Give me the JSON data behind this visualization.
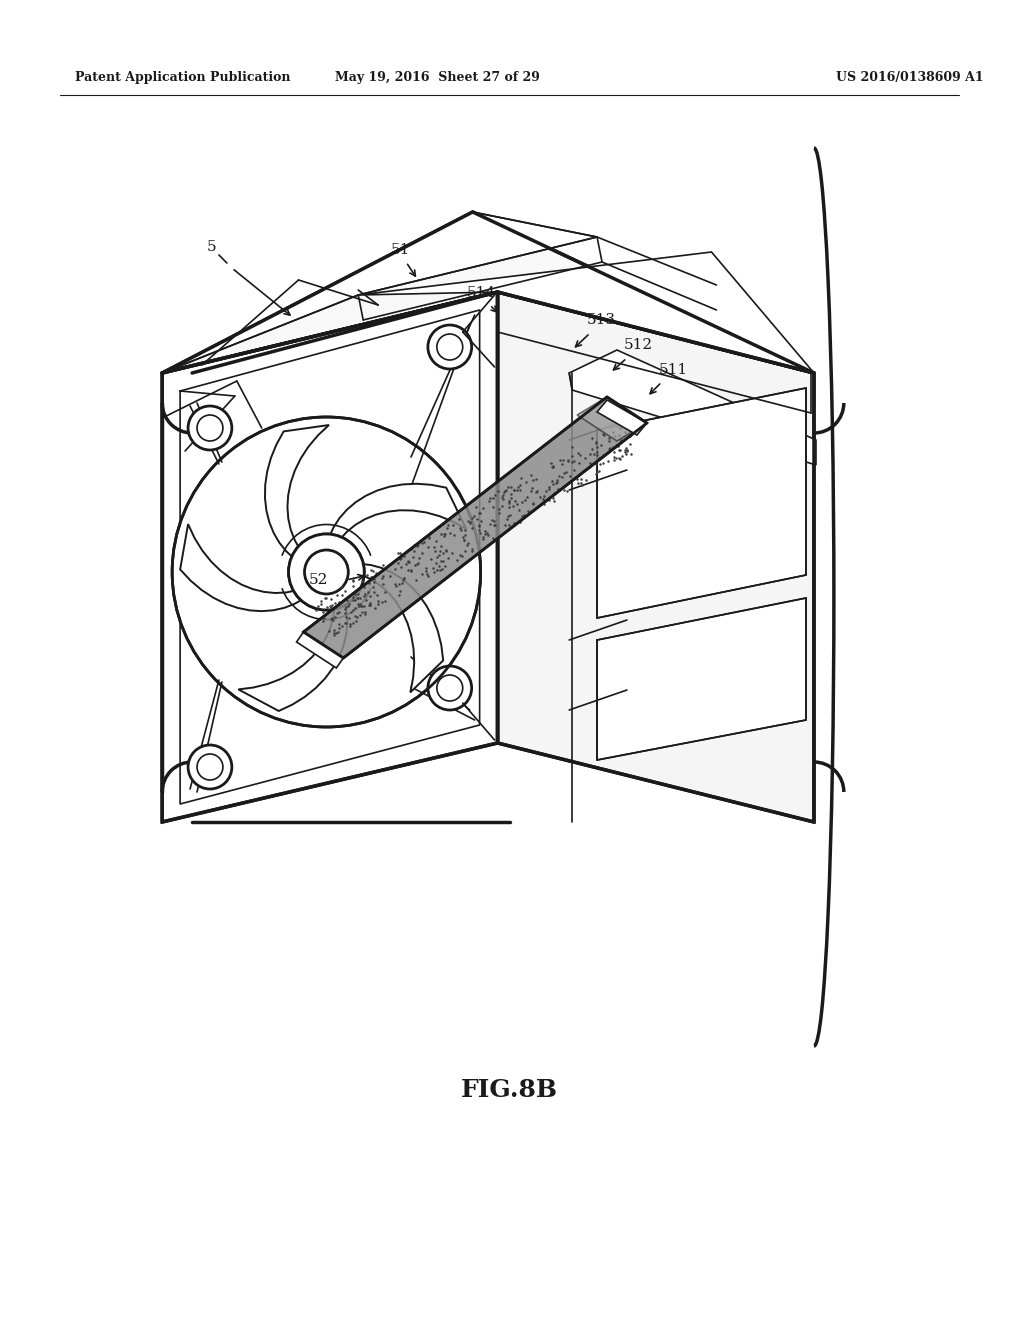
{
  "bg_color": "#ffffff",
  "line_color": "#1a1a1a",
  "header_left": "Patent Application Publication",
  "header_mid": "May 19, 2016  Sheet 27 of 29",
  "header_right": "US 2016/0138609 A1",
  "figure_label": "FIG.8B",
  "label_fontsize": 11,
  "header_fontsize": 9,
  "fig_label_fontsize": 18,
  "lw_main": 2.0,
  "lw_thin": 1.2,
  "lw_thick": 2.5,
  "gray_bar": "#8c8c8c",
  "gray_bar_light": "#b0b0b0",
  "right_face_color": "#f5f5f5",
  "top_face_color": "#f8f8f8"
}
